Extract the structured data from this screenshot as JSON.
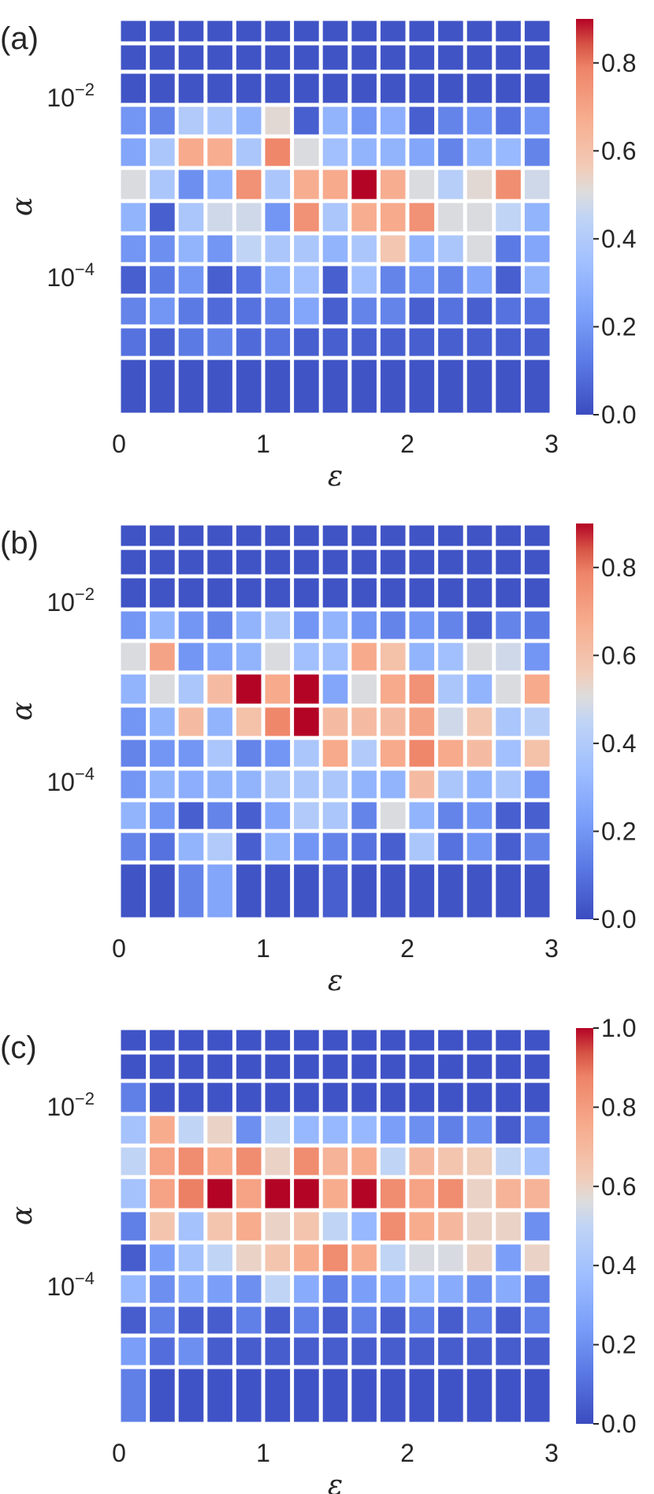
{
  "chart_data": [
    {
      "type": "heatmap",
      "panel_label": "(a)",
      "xlabel": "ε",
      "ylabel": "α",
      "xlim": [
        0,
        3
      ],
      "xticks": [
        "0",
        "1",
        "2",
        "3"
      ],
      "yticks": [
        {
          "base": "10",
          "exp": "−2"
        },
        {
          "base": "10",
          "exp": "−4"
        }
      ],
      "colorbar": {
        "min": 0.0,
        "max": 0.9,
        "ticks": [
          "0.0",
          "0.2",
          "0.4",
          "0.6",
          "0.8"
        ]
      },
      "rows_top_to_bottom": [
        [
          0.02,
          0.02,
          0.02,
          0.02,
          0.02,
          0.02,
          0.02,
          0.02,
          0.02,
          0.02,
          0.02,
          0.02,
          0.02,
          0.02,
          0.02
        ],
        [
          0.02,
          0.02,
          0.02,
          0.02,
          0.02,
          0.02,
          0.02,
          0.02,
          0.02,
          0.02,
          0.02,
          0.02,
          0.02,
          0.02,
          0.02
        ],
        [
          0.02,
          0.02,
          0.02,
          0.02,
          0.02,
          0.02,
          0.02,
          0.02,
          0.02,
          0.02,
          0.02,
          0.02,
          0.02,
          0.02,
          0.02
        ],
        [
          0.2,
          0.15,
          0.4,
          0.38,
          0.3,
          0.52,
          0.05,
          0.3,
          0.2,
          0.28,
          0.05,
          0.15,
          0.2,
          0.1,
          0.2
        ],
        [
          0.25,
          0.38,
          0.68,
          0.67,
          0.38,
          0.78,
          0.5,
          0.35,
          0.3,
          0.3,
          0.25,
          0.15,
          0.3,
          0.32,
          0.15
        ],
        [
          0.5,
          0.38,
          0.18,
          0.3,
          0.75,
          0.38,
          0.67,
          0.68,
          0.9,
          0.67,
          0.5,
          0.42,
          0.52,
          0.76,
          0.48
        ],
        [
          0.3,
          0.05,
          0.38,
          0.48,
          0.48,
          0.2,
          0.75,
          0.38,
          0.67,
          0.68,
          0.75,
          0.5,
          0.5,
          0.45,
          0.3
        ],
        [
          0.2,
          0.18,
          0.3,
          0.2,
          0.45,
          0.38,
          0.38,
          0.3,
          0.38,
          0.58,
          0.3,
          0.38,
          0.5,
          0.12,
          0.25
        ],
        [
          0.05,
          0.12,
          0.2,
          0.05,
          0.1,
          0.3,
          0.35,
          0.05,
          0.35,
          0.15,
          0.2,
          0.15,
          0.25,
          0.05,
          0.3
        ],
        [
          0.15,
          0.2,
          0.12,
          0.08,
          0.1,
          0.15,
          0.25,
          0.05,
          0.15,
          0.15,
          0.05,
          0.1,
          0.05,
          0.1,
          0.1
        ],
        [
          0.1,
          0.05,
          0.12,
          0.15,
          0.08,
          0.1,
          0.05,
          0.05,
          0.05,
          0.05,
          0.05,
          0.05,
          0.05,
          0.05,
          0.05
        ],
        [
          0.02,
          0.02,
          0.02,
          0.02,
          0.02,
          0.02,
          0.02,
          0.02,
          0.02,
          0.02,
          0.02,
          0.02,
          0.02,
          0.02,
          0.02
        ]
      ]
    },
    {
      "type": "heatmap",
      "panel_label": "(b)",
      "xlabel": "ε",
      "ylabel": "α",
      "xlim": [
        0,
        3
      ],
      "xticks": [
        "0",
        "1",
        "2",
        "3"
      ],
      "yticks": [
        {
          "base": "10",
          "exp": "−2"
        },
        {
          "base": "10",
          "exp": "−4"
        }
      ],
      "colorbar": {
        "min": 0.0,
        "max": 0.9,
        "ticks": [
          "0.0",
          "0.2",
          "0.4",
          "0.6",
          "0.8"
        ]
      },
      "rows_top_to_bottom": [
        [
          0.02,
          0.02,
          0.02,
          0.02,
          0.02,
          0.02,
          0.02,
          0.02,
          0.02,
          0.02,
          0.02,
          0.02,
          0.02,
          0.02,
          0.02
        ],
        [
          0.02,
          0.02,
          0.02,
          0.02,
          0.02,
          0.02,
          0.02,
          0.02,
          0.02,
          0.02,
          0.02,
          0.02,
          0.02,
          0.02,
          0.02
        ],
        [
          0.02,
          0.02,
          0.02,
          0.02,
          0.02,
          0.02,
          0.02,
          0.02,
          0.02,
          0.02,
          0.02,
          0.02,
          0.02,
          0.02,
          0.02
        ],
        [
          0.2,
          0.3,
          0.2,
          0.15,
          0.3,
          0.38,
          0.2,
          0.3,
          0.2,
          0.15,
          0.2,
          0.15,
          0.05,
          0.15,
          0.12
        ],
        [
          0.5,
          0.7,
          0.2,
          0.25,
          0.3,
          0.5,
          0.35,
          0.35,
          0.68,
          0.6,
          0.3,
          0.35,
          0.5,
          0.48,
          0.2
        ],
        [
          0.3,
          0.5,
          0.38,
          0.62,
          0.9,
          0.68,
          0.9,
          0.25,
          0.5,
          0.68,
          0.75,
          0.38,
          0.3,
          0.5,
          0.68
        ],
        [
          0.2,
          0.3,
          0.62,
          0.3,
          0.6,
          0.78,
          0.9,
          0.62,
          0.62,
          0.62,
          0.7,
          0.48,
          0.58,
          0.38,
          0.42
        ],
        [
          0.15,
          0.2,
          0.2,
          0.38,
          0.15,
          0.2,
          0.38,
          0.68,
          0.4,
          0.68,
          0.78,
          0.68,
          0.62,
          0.35,
          0.6
        ],
        [
          0.2,
          0.3,
          0.28,
          0.3,
          0.3,
          0.38,
          0.38,
          0.38,
          0.3,
          0.3,
          0.62,
          0.38,
          0.3,
          0.38,
          0.2
        ],
        [
          0.3,
          0.2,
          0.05,
          0.15,
          0.05,
          0.25,
          0.4,
          0.38,
          0.15,
          0.5,
          0.3,
          0.15,
          0.2,
          0.05,
          0.05
        ],
        [
          0.15,
          0.1,
          0.3,
          0.4,
          0.05,
          0.3,
          0.2,
          0.15,
          0.1,
          0.05,
          0.38,
          0.1,
          0.2,
          0.05,
          0.15
        ],
        [
          0.02,
          0.02,
          0.15,
          0.25,
          0.02,
          0.02,
          0.02,
          0.05,
          0.02,
          0.02,
          0.02,
          0.02,
          0.02,
          0.02,
          0.02
        ]
      ]
    },
    {
      "type": "heatmap",
      "panel_label": "(c)",
      "xlabel": "ε",
      "ylabel": "α",
      "xlim": [
        0,
        3
      ],
      "xticks": [
        "0",
        "1",
        "2",
        "3"
      ],
      "yticks": [
        {
          "base": "10",
          "exp": "−2"
        },
        {
          "base": "10",
          "exp": "−4"
        }
      ],
      "colorbar": {
        "min": 0.0,
        "max": 1.0,
        "ticks": [
          "0.0",
          "0.2",
          "0.4",
          "0.6",
          "0.8",
          "1.0"
        ]
      },
      "rows_top_to_bottom": [
        [
          0.02,
          0.02,
          0.02,
          0.02,
          0.02,
          0.02,
          0.02,
          0.02,
          0.02,
          0.02,
          0.02,
          0.02,
          0.02,
          0.02,
          0.02
        ],
        [
          0.02,
          0.02,
          0.02,
          0.02,
          0.02,
          0.02,
          0.02,
          0.02,
          0.02,
          0.02,
          0.02,
          0.02,
          0.02,
          0.02,
          0.02
        ],
        [
          0.15,
          0.02,
          0.02,
          0.02,
          0.02,
          0.02,
          0.02,
          0.02,
          0.02,
          0.02,
          0.02,
          0.02,
          0.02,
          0.02,
          0.02
        ],
        [
          0.4,
          0.75,
          0.5,
          0.6,
          0.2,
          0.5,
          0.35,
          0.35,
          0.35,
          0.25,
          0.2,
          0.15,
          0.2,
          0.05,
          0.15
        ],
        [
          0.5,
          0.78,
          0.85,
          0.75,
          0.85,
          0.6,
          0.85,
          0.72,
          0.75,
          0.5,
          0.7,
          0.65,
          0.62,
          0.5,
          0.4
        ],
        [
          0.4,
          0.78,
          0.88,
          1.0,
          0.78,
          1.0,
          1.0,
          0.75,
          1.0,
          0.85,
          0.78,
          0.85,
          0.6,
          0.72,
          0.72
        ],
        [
          0.15,
          0.65,
          0.4,
          0.65,
          0.75,
          0.6,
          0.65,
          0.5,
          0.35,
          0.85,
          0.75,
          0.7,
          0.6,
          0.6,
          0.2
        ],
        [
          0.05,
          0.25,
          0.4,
          0.5,
          0.6,
          0.65,
          0.75,
          0.85,
          0.75,
          0.5,
          0.55,
          0.55,
          0.6,
          0.25,
          0.6
        ],
        [
          0.35,
          0.2,
          0.3,
          0.25,
          0.2,
          0.5,
          0.3,
          0.15,
          0.25,
          0.3,
          0.35,
          0.3,
          0.2,
          0.3,
          0.15
        ],
        [
          0.05,
          0.15,
          0.05,
          0.05,
          0.15,
          0.05,
          0.15,
          0.05,
          0.15,
          0.05,
          0.15,
          0.05,
          0.15,
          0.05,
          0.15
        ],
        [
          0.25,
          0.1,
          0.2,
          0.05,
          0.05,
          0.05,
          0.05,
          0.05,
          0.05,
          0.05,
          0.05,
          0.05,
          0.05,
          0.05,
          0.05
        ],
        [
          0.15,
          0.02,
          0.02,
          0.02,
          0.02,
          0.02,
          0.02,
          0.02,
          0.02,
          0.02,
          0.02,
          0.02,
          0.02,
          0.02,
          0.02
        ]
      ]
    }
  ]
}
